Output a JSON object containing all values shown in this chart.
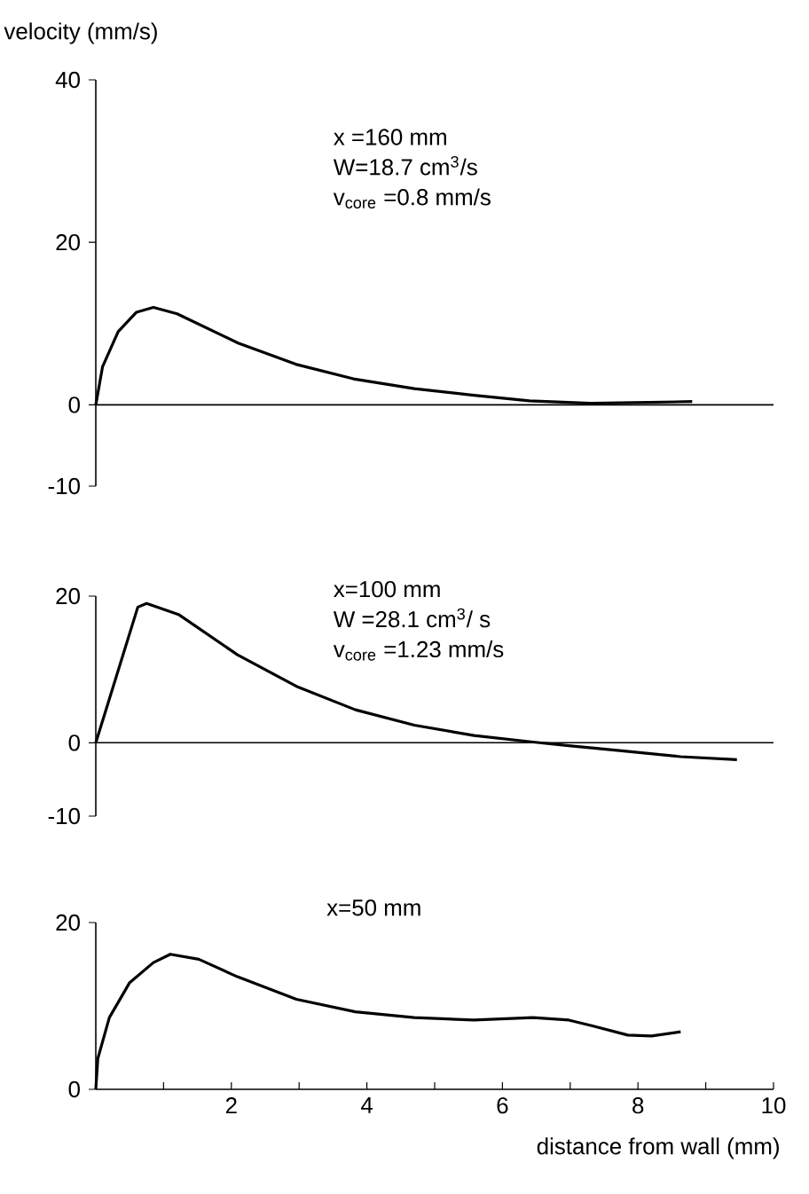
{
  "chart_data": [
    {
      "type": "line",
      "ylabel": "velocity (mm/s)",
      "annotations": [
        "x =160 mm",
        "W=18.7 cm$^{3}$/s",
        "v$_{core}$ =0.8 mm/s"
      ],
      "xlim": [
        0,
        10
      ],
      "ylim": [
        -10,
        40
      ],
      "yticks": [
        -10,
        0,
        20,
        40
      ],
      "tick_labels": "y",
      "ref_lines": [
        {
          "axis": "y",
          "value": 0
        }
      ],
      "x": [
        0,
        0.1,
        0.33,
        0.6,
        0.85,
        1.2,
        2.1,
        2.95,
        3.8,
        4.7,
        5.55,
        6.4,
        7.3,
        8.8
      ],
      "series": [
        {
          "color": "#000000",
          "values": [
            0,
            4.7,
            9,
            11.4,
            12,
            11.2,
            7.6,
            5,
            3.2,
            2,
            1.2,
            0.5,
            0.2,
            0.4
          ]
        }
      ]
    },
    {
      "type": "line",
      "annotations": [
        "x=100 mm",
        "W =28.1 cm$^{3}$/ s",
        "v$_{core}$ =1.23 mm/s"
      ],
      "xlim": [
        0,
        10
      ],
      "ylim": [
        -10,
        20
      ],
      "yticks": [
        -10,
        0,
        20
      ],
      "tick_labels": "y",
      "ref_lines": [
        {
          "axis": "y",
          "value": 0
        }
      ],
      "x": [
        0,
        0.62,
        0.75,
        1.22,
        2.09,
        2.96,
        3.83,
        4.7,
        5.58,
        6.45,
        6.98,
        7.76,
        8.63,
        9.46
      ],
      "series": [
        {
          "color": "#000000",
          "values": [
            0,
            18.5,
            19,
            17.5,
            12,
            7.7,
            4.5,
            2.4,
            1,
            0.1,
            -0.4,
            -1.1,
            -1.9,
            -2.3
          ]
        }
      ]
    },
    {
      "type": "line",
      "xlabel": "distance from wall (mm)",
      "annotations": [
        "x=50 mm"
      ],
      "xlim": [
        0,
        10
      ],
      "ylim": [
        0,
        20
      ],
      "xticks": [
        {
          "value": 0,
          "label": null
        },
        {
          "value": 1,
          "label": null
        },
        2,
        {
          "value": 3,
          "label": null
        },
        4,
        {
          "value": 5,
          "label": null
        },
        6,
        {
          "value": 7,
          "label": null
        },
        8,
        {
          "value": 9,
          "label": null
        },
        10
      ],
      "yticks": [
        0,
        20
      ],
      "x": [
        0,
        0.03,
        0.2,
        0.5,
        0.85,
        1.1,
        1.52,
        2.09,
        2.96,
        3.83,
        4.7,
        5.58,
        6.45,
        6.98,
        7.33,
        7.85,
        8.2,
        8.63
      ],
      "series": [
        {
          "color": "#000000",
          "values": [
            0,
            3.7,
            8.6,
            12.8,
            15.2,
            16.2,
            15.6,
            13.5,
            10.8,
            9.3,
            8.6,
            8.3,
            8.6,
            8.3,
            7.6,
            6.5,
            6.4,
            6.9
          ]
        }
      ]
    }
  ]
}
